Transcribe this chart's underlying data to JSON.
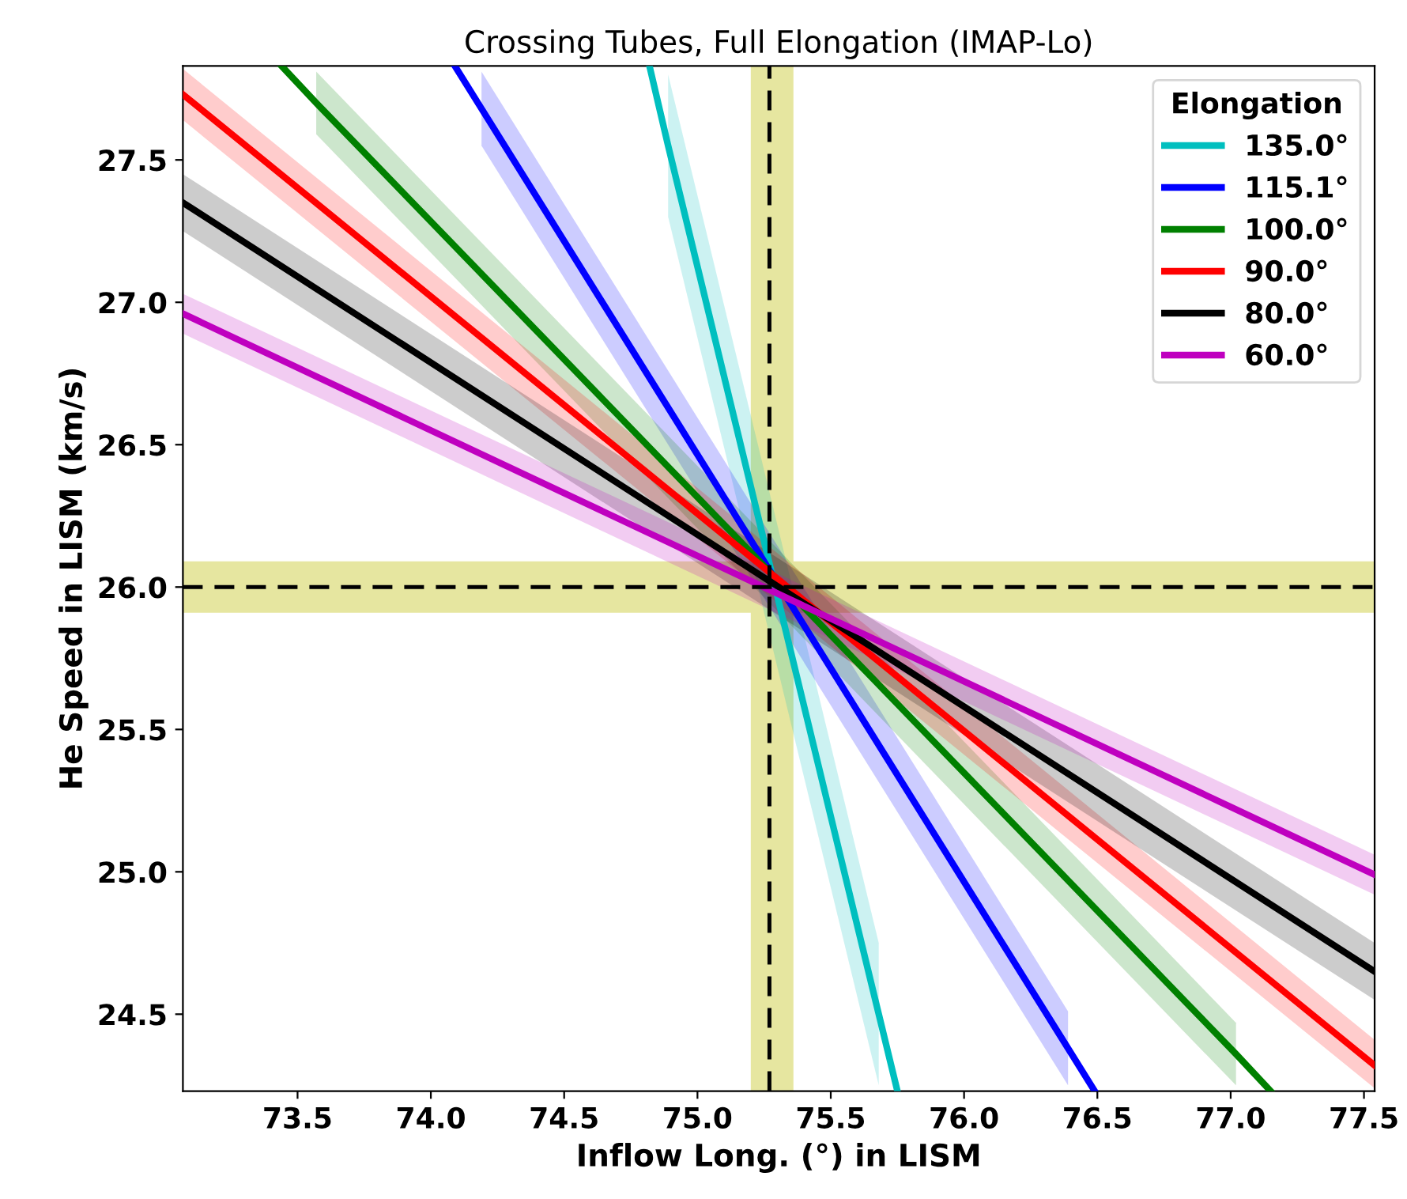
{
  "chart_data": {
    "type": "line",
    "title": "Crossing Tubes, Full Elongation (IMAP-Lo)",
    "xlabel": "Inflow Long. (°) in LISM",
    "ylabel": "He Speed in LISM (km/s)",
    "legend_title": "Elongation",
    "legend": "top right",
    "grid": false,
    "line_style": "solid",
    "xlim": [
      73.07,
      77.54
    ],
    "ylim": [
      24.23,
      27.83
    ],
    "xticks": [
      73.5,
      {
        "value": 74,
        "label": "74.0"
      },
      74.5,
      {
        "value": 75,
        "label": "75.0"
      },
      75.5,
      {
        "value": 76,
        "label": "76.0"
      },
      76.5,
      {
        "value": 77,
        "label": "77.0"
      },
      77.5
    ],
    "yticks": [
      24.5,
      {
        "value": 25,
        "label": "25.0"
      },
      25.5,
      {
        "value": 26,
        "label": "26.0"
      },
      26.5,
      {
        "value": 27,
        "label": "27.0"
      },
      27.5
    ],
    "series": [
      {
        "name": "135.0°",
        "color": "#00bfbf",
        "x": [
          74.82,
          74.89,
          75.68,
          75.75
        ],
        "values": [
          27.83,
          27.55,
          24.5,
          24.23
        ],
        "lower": [
          null,
          27.3,
          24.25,
          null
        ],
        "upper": [
          null,
          27.8,
          24.75,
          null
        ]
      },
      {
        "name": "115.1°",
        "color": "#0000ff",
        "x": [
          74.09,
          74.19,
          76.39,
          76.49
        ],
        "values": [
          27.83,
          27.68,
          24.38,
          24.23
        ],
        "lower": [
          null,
          27.55,
          24.25,
          null
        ],
        "upper": [
          null,
          27.81,
          24.51,
          null
        ]
      },
      {
        "name": "100.0°",
        "color": "#008000",
        "x": [
          73.44,
          73.57,
          77.02,
          77.15
        ],
        "values": [
          27.83,
          27.7,
          24.36,
          24.23
        ],
        "lower": [
          null,
          27.59,
          24.25,
          null
        ],
        "upper": [
          null,
          27.81,
          24.47,
          null
        ]
      },
      {
        "name": "90.0°",
        "color": "#ff0000",
        "x": [
          73.07,
          77.54
        ],
        "values": [
          27.73,
          24.32
        ],
        "lower": [
          27.64,
          24.24
        ],
        "upper": [
          27.82,
          24.41
        ]
      },
      {
        "name": "80.0°",
        "color": "#000000",
        "x": [
          73.07,
          77.54
        ],
        "values": [
          27.35,
          24.65
        ],
        "lower": [
          27.25,
          24.55
        ],
        "upper": [
          27.45,
          24.75
        ]
      },
      {
        "name": "60.0°",
        "color": "#bf00bf",
        "x": [
          73.07,
          77.54
        ],
        "values": [
          26.96,
          24.99
        ],
        "lower": [
          26.89,
          24.92
        ],
        "upper": [
          27.03,
          25.06
        ]
      }
    ],
    "bands": [
      {
        "axis": "x",
        "from": 75.2,
        "to": 75.36,
        "color": "#e6e6a0"
      },
      {
        "axis": "y",
        "from": 25.91,
        "to": 26.09,
        "color": "#e6e6a0"
      }
    ],
    "ref_lines": [
      {
        "axis": "x",
        "value": 75.27,
        "color": "#000000",
        "line_style": "dashed"
      },
      {
        "axis": "y",
        "value": 26.0,
        "color": "#000000",
        "line_style": "dashed"
      }
    ]
  }
}
